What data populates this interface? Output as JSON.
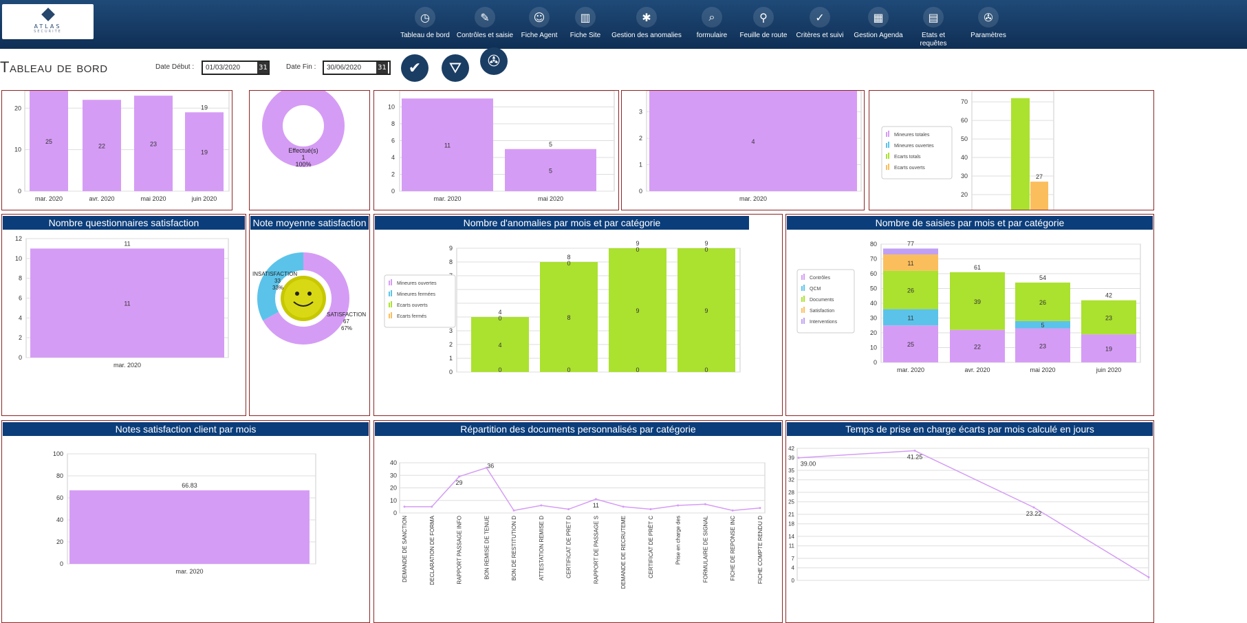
{
  "brand": {
    "name": "ATLAS",
    "sub": "SECURITE"
  },
  "nav": [
    {
      "label": "Tableau de bord",
      "icon": "gauge-icon",
      "glyph": "◷"
    },
    {
      "label": "Contrôles et saisie",
      "icon": "controls-icon",
      "glyph": "✎"
    },
    {
      "label": "Fiche Agent",
      "icon": "agent-icon",
      "glyph": "☺"
    },
    {
      "label": "Fiche Site",
      "icon": "building-icon",
      "glyph": "▥"
    },
    {
      "label": "Gestion des anomalies",
      "icon": "bug-icon",
      "glyph": "✱"
    },
    {
      "label": "formulaire",
      "icon": "form-search-icon",
      "glyph": "⌕"
    },
    {
      "label": "Feuille de route",
      "icon": "route-icon",
      "glyph": "⚲"
    },
    {
      "label": "Critères et suivi",
      "icon": "clipboard-icon",
      "glyph": "✓"
    },
    {
      "label": "Gestion Agenda",
      "icon": "calendar-icon",
      "glyph": "▦"
    },
    {
      "label": "Etats et requêtes",
      "icon": "report-icon",
      "glyph": "▤"
    },
    {
      "label": "Paramètres",
      "icon": "wrench-icon",
      "glyph": "✇"
    }
  ],
  "toolbar": {
    "title": "Tableau de bord",
    "date_debut_label": "Date Début :",
    "date_debut": "01/03/2020",
    "date_fin_label": "Date Fin :",
    "date_fin": "30/06/2020",
    "calendar_glyph": "31"
  },
  "panels": {
    "p1": {
      "type": "bar",
      "categories": [
        "mar. 2020",
        "avr. 2020",
        "mai 2020",
        "juin 2020"
      ],
      "values": [
        25,
        22,
        23,
        19
      ],
      "top_labels": [
        "",
        "",
        "",
        "19"
      ],
      "yticks": [
        0,
        10,
        20
      ]
    },
    "p2": {
      "type": "pie",
      "label": "Effectué(s)",
      "count": "1",
      "pct": "100%"
    },
    "p3": {
      "type": "bar",
      "categories": [
        "mar. 2020",
        "mai 2020"
      ],
      "values": [
        11,
        5
      ],
      "top_labels": [
        "",
        "5"
      ],
      "yticks": [
        0,
        2,
        4,
        6,
        8,
        10
      ]
    },
    "p4": {
      "type": "bar",
      "categories": [
        "mar. 2020"
      ],
      "values": [
        4
      ],
      "yticks": [
        0,
        1,
        2,
        3
      ]
    },
    "p5": {
      "type": "bar",
      "legend": [
        "Mineures totales",
        "Mineures ouvertes",
        "Ecarts totals",
        "Ecarts ouverts"
      ],
      "values": [
        72,
        27
      ],
      "value_label": "27",
      "yticks": [
        20,
        30,
        40,
        50,
        60,
        70
      ]
    },
    "q1": {
      "title": "Nombre questionnaires satisfaction",
      "type": "bar",
      "categories": [
        "mar. 2020"
      ],
      "values": [
        11
      ],
      "top_label": "11",
      "yticks": [
        0,
        2,
        4,
        6,
        8,
        10,
        12
      ]
    },
    "q2": {
      "title": "Note moyenne satisfaction",
      "type": "pie",
      "slices": [
        {
          "name": "INSATISFACTION",
          "value": 33,
          "pct": "33%"
        },
        {
          "name": "SATISFACTION",
          "value": 67,
          "pct": "67%"
        }
      ]
    },
    "q3": {
      "title": "Nombre d'anomalies par mois et par catégorie",
      "type": "bar",
      "legend": [
        "Mineures ouvertes",
        "Mineures fermées",
        "Ecarts ouverts",
        "Ecarts fermés"
      ],
      "values": [
        4,
        8,
        9,
        9
      ],
      "top_labels": [
        "4",
        "8",
        "9",
        "9"
      ],
      "yticks": [
        0,
        1,
        2,
        3,
        4,
        5,
        6,
        7,
        8,
        9
      ]
    },
    "q4": {
      "title": "Nombre de saisies par mois et par catégorie",
      "type": "bar",
      "legend": [
        "Contrôles",
        "QCM",
        "Documents",
        "Satisfaction",
        "Interventions"
      ],
      "categories": [
        "mar. 2020",
        "avr. 2020",
        "mai 2020",
        "juin 2020"
      ],
      "stacks": [
        [
          25,
          11,
          26,
          11,
          4
        ],
        [
          22,
          0,
          39,
          0,
          0
        ],
        [
          23,
          5,
          26,
          0,
          0
        ],
        [
          19,
          0,
          23,
          0,
          0
        ]
      ],
      "totals": [
        "77",
        "61",
        "54",
        "42"
      ],
      "yticks": [
        0,
        10,
        20,
        30,
        40,
        50,
        60,
        70,
        80
      ]
    },
    "r1": {
      "title": "Notes satisfaction client par mois",
      "type": "bar",
      "categories": [
        "mar. 2020"
      ],
      "values": [
        66.83
      ],
      "top_label": "66.83",
      "yticks": [
        0,
        20,
        40,
        60,
        80,
        100
      ]
    },
    "r2": {
      "title": "Répartition des documents personnalisés par catégorie",
      "type": "line",
      "categories": [
        "DEMANDE DE SANCTION",
        "DECLARATION DE FORMA",
        "RAPPORT PASSAGE INFO",
        "BON REMISE DE TENUE",
        "BON DE RESTITUTION D",
        "ATTESTATION REMISE D",
        "CERTIFICAT DE PRET D",
        "RAPPORT DE PASSAGE S",
        "DEMANDE DE RECRUTEME",
        "CERTIFICAT DE PRÊT C",
        "Prise en charge des",
        "FORMULAIRE DE SIGNAL",
        "FICHE DE REPONSE INC",
        "FICHE COMPTE RENDU D"
      ],
      "values": [
        5,
        5,
        29,
        36,
        2,
        6,
        3,
        11,
        5,
        3,
        6,
        7,
        2,
        4
      ],
      "point_labels": [
        "",
        "",
        "29",
        "36",
        "",
        "",
        "",
        "11",
        "",
        "",
        "",
        "",
        "",
        ""
      ],
      "yticks": [
        0,
        10,
        20,
        30,
        40
      ]
    },
    "r3": {
      "title": "Temps de prise en charge écarts par mois calculé en jours",
      "type": "line",
      "values": [
        39.0,
        41.25,
        23.22,
        1
      ],
      "point_labels": [
        "39.00",
        "41.25",
        "23.22",
        ""
      ],
      "yticks": [
        0,
        4,
        7,
        11,
        14,
        18,
        21,
        25,
        28,
        32,
        35,
        39,
        42
      ]
    }
  },
  "colors": {
    "violet": "#d59cf5",
    "green": "#abe12f",
    "cyan": "#5bc3ea",
    "orange": "#fbbe5d",
    "lavender": "#c0a0f4",
    "header": "#0b3d7a",
    "border": "#8b2323"
  }
}
